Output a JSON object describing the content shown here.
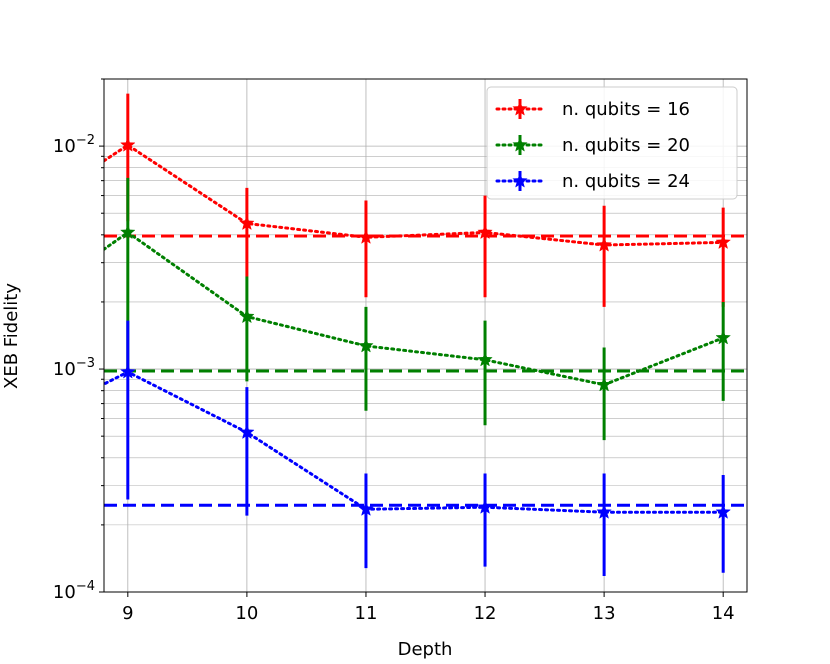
{
  "chart_data": {
    "type": "line",
    "xlabel": "Depth",
    "ylabel": "XEB Fidelity",
    "x": [
      9,
      10,
      11,
      12,
      13,
      14
    ],
    "xlim": [
      8.8,
      14.2
    ],
    "ylim": [
      0.0001,
      0.02
    ],
    "yscale": "log",
    "grid": true,
    "legend_position": "top-right",
    "x_tick_labels": [
      "9",
      "10",
      "11",
      "12",
      "13",
      "14"
    ],
    "y_tick_labels": [
      {
        "value": 0.01,
        "base": "10",
        "exp": "−2"
      },
      {
        "value": 0.001,
        "base": "10",
        "exp": "−3"
      },
      {
        "value": 0.0001,
        "base": "10",
        "exp": "−4"
      }
    ],
    "series": [
      {
        "name": "n. qubits = 16",
        "color": "#ff0000",
        "values": [
          0.0101,
          0.0045,
          0.0039,
          0.0041,
          0.0036,
          0.0037
        ],
        "err_low": [
          0.0046,
          0.0026,
          0.0021,
          0.0021,
          0.0019,
          0.0019
        ],
        "err_high": [
          0.0172,
          0.0065,
          0.0057,
          0.006,
          0.0054,
          0.0053
        ],
        "reference": 0.00395
      },
      {
        "name": "n. qubits = 20",
        "color": "#008000",
        "values": [
          0.0041,
          0.00172,
          0.00127,
          0.0011,
          0.00085,
          0.00138
        ],
        "err_low": [
          0.00095,
          0.00088,
          0.00065,
          0.00056,
          0.00048,
          0.00072
        ],
        "err_high": [
          0.0072,
          0.0026,
          0.0019,
          0.00165,
          0.00125,
          0.002
        ],
        "reference": 0.00098
      },
      {
        "name": "n. qubits = 24",
        "color": "#0000ff",
        "values": [
          0.00097,
          0.00052,
          0.000235,
          0.00024,
          0.000228,
          0.000228
        ],
        "err_low": [
          0.00026,
          0.00022,
          0.000128,
          0.00013,
          0.000118,
          0.000122
        ],
        "err_high": [
          0.00165,
          0.00083,
          0.00034,
          0.00034,
          0.00034,
          0.000335
        ],
        "reference": 0.000245
      }
    ]
  }
}
